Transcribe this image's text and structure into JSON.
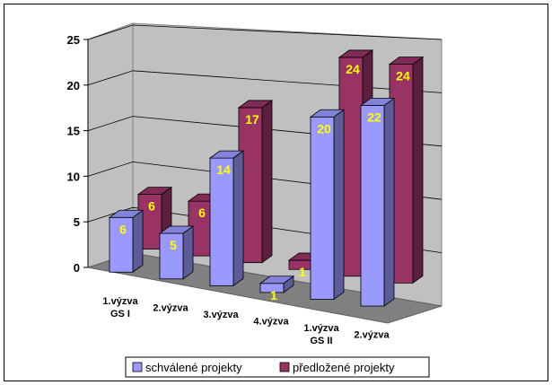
{
  "chart_data": {
    "type": "bar",
    "categories": [
      [
        "1.výzva",
        "GS I"
      ],
      [
        "2.výzva"
      ],
      [
        "3.výzva"
      ],
      [
        "4.výzva"
      ],
      [
        "1.výzva",
        "GS II"
      ],
      [
        "2.výzva"
      ]
    ],
    "series": [
      {
        "name": "schválené projekty",
        "values": [
          6,
          5,
          14,
          1,
          20,
          22
        ],
        "color": "#9999ff"
      },
      {
        "name": "předložené projekty",
        "values": [
          6,
          6,
          17,
          1,
          24,
          24
        ],
        "color": "#993366"
      }
    ],
    "y_ticks": [
      0,
      5,
      10,
      15,
      20,
      25
    ],
    "ylim": [
      0,
      25
    ],
    "grid": true,
    "legend_position": "bottom",
    "three_d": true,
    "data_label_color": "#ffff00"
  }
}
